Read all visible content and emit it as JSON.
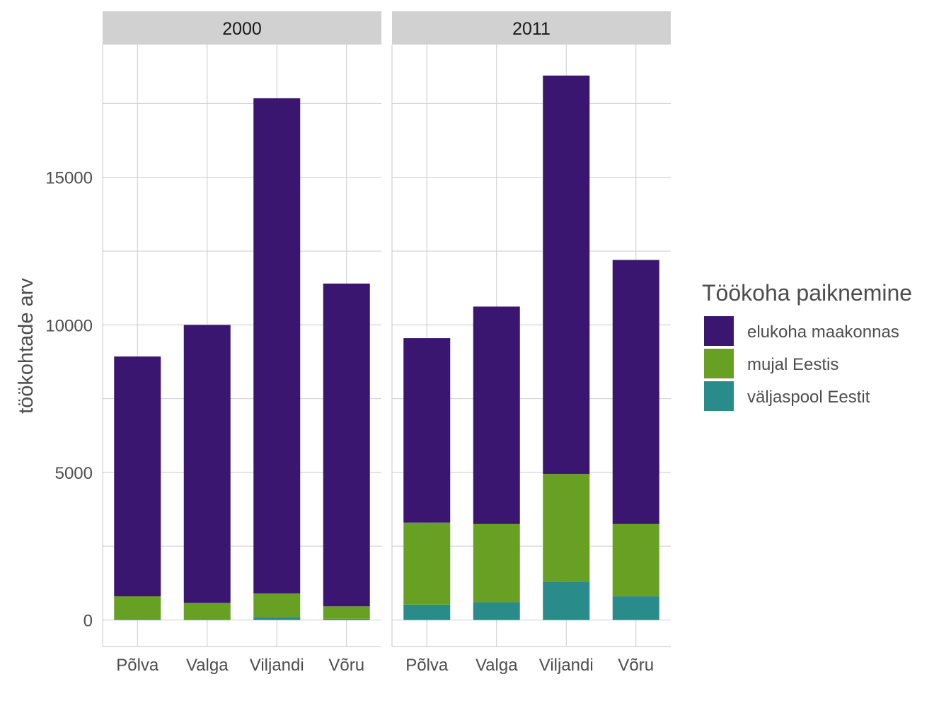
{
  "chart_data": {
    "type": "bar",
    "stacked": true,
    "ylabel": "töökohtade arv",
    "xlabel": "",
    "ylim": [
      -900,
      19500
    ],
    "yticks": [
      0,
      5000,
      10000,
      15000
    ],
    "grid": true,
    "legend": {
      "title": "Töökoha paiknemine",
      "position": "right",
      "entries": [
        "elukoha maakonnas",
        "mujal Eestis",
        "väljaspool Eestit"
      ]
    },
    "colors": {
      "elukoha maakonnas": "#3A1670",
      "mujal Eestis": "#68A023",
      "väljaspool Eestit": "#2A8B8B"
    },
    "categories": [
      "Põlva",
      "Valga",
      "Viljandi",
      "Võru"
    ],
    "panels": [
      {
        "title": "2000",
        "series": [
          {
            "name": "väljaspool Eestit",
            "values": [
              30,
              30,
              100,
              40
            ]
          },
          {
            "name": "mujal Eestis",
            "values": [
              770,
              550,
              800,
              420
            ]
          },
          {
            "name": "elukoha maakonnas",
            "values": [
              8130,
              9420,
              16780,
              10940
            ]
          }
        ]
      },
      {
        "title": "2011",
        "series": [
          {
            "name": "väljaspool Eestit",
            "values": [
              520,
              600,
              1300,
              800
            ]
          },
          {
            "name": "mujal Eestis",
            "values": [
              2780,
              2650,
              3650,
              2450
            ]
          },
          {
            "name": "elukoha maakonnas",
            "values": [
              6250,
              7370,
              13500,
              8950
            ]
          }
        ]
      }
    ]
  }
}
